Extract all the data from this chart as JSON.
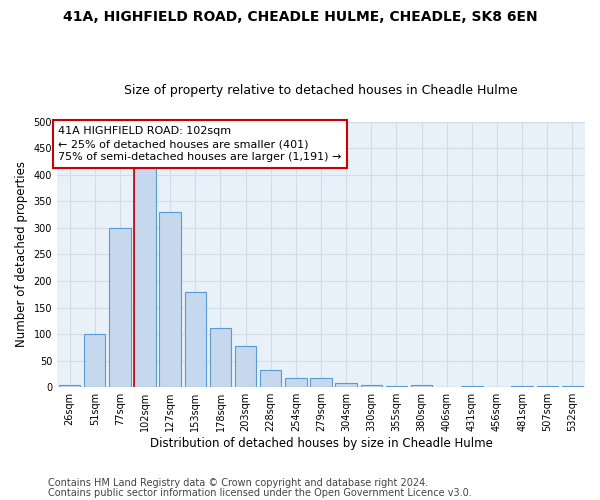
{
  "title": "41A, HIGHFIELD ROAD, CHEADLE HULME, CHEADLE, SK8 6EN",
  "subtitle": "Size of property relative to detached houses in Cheadle Hulme",
  "xlabel": "Distribution of detached houses by size in Cheadle Hulme",
  "ylabel": "Number of detached properties",
  "bin_labels": [
    "26sqm",
    "51sqm",
    "77sqm",
    "102sqm",
    "127sqm",
    "153sqm",
    "178sqm",
    "203sqm",
    "228sqm",
    "254sqm",
    "279sqm",
    "304sqm",
    "330sqm",
    "355sqm",
    "380sqm",
    "406sqm",
    "431sqm",
    "456sqm",
    "481sqm",
    "507sqm",
    "532sqm"
  ],
  "bar_values": [
    4,
    100,
    300,
    415,
    330,
    180,
    112,
    78,
    32,
    18,
    17,
    8,
    5,
    3,
    5,
    0,
    2,
    0,
    3,
    3,
    2
  ],
  "bar_color": "#c5d8ed",
  "bar_edge_color": "#5b9bd5",
  "highlight_bar_index": 3,
  "annotation_text": "41A HIGHFIELD ROAD: 102sqm\n← 25% of detached houses are smaller (401)\n75% of semi-detached houses are larger (1,191) →",
  "annotation_box_color": "#ffffff",
  "annotation_box_edge": "#cc0000",
  "ylim": [
    0,
    500
  ],
  "yticks": [
    0,
    50,
    100,
    150,
    200,
    250,
    300,
    350,
    400,
    450,
    500
  ],
  "grid_color": "#d0dce8",
  "background_color": "#e8f0f8",
  "footer_line1": "Contains HM Land Registry data © Crown copyright and database right 2024.",
  "footer_line2": "Contains public sector information licensed under the Open Government Licence v3.0.",
  "title_fontsize": 10,
  "subtitle_fontsize": 9,
  "axis_label_fontsize": 8.5,
  "tick_label_fontsize": 7,
  "annotation_fontsize": 8,
  "footer_fontsize": 7
}
